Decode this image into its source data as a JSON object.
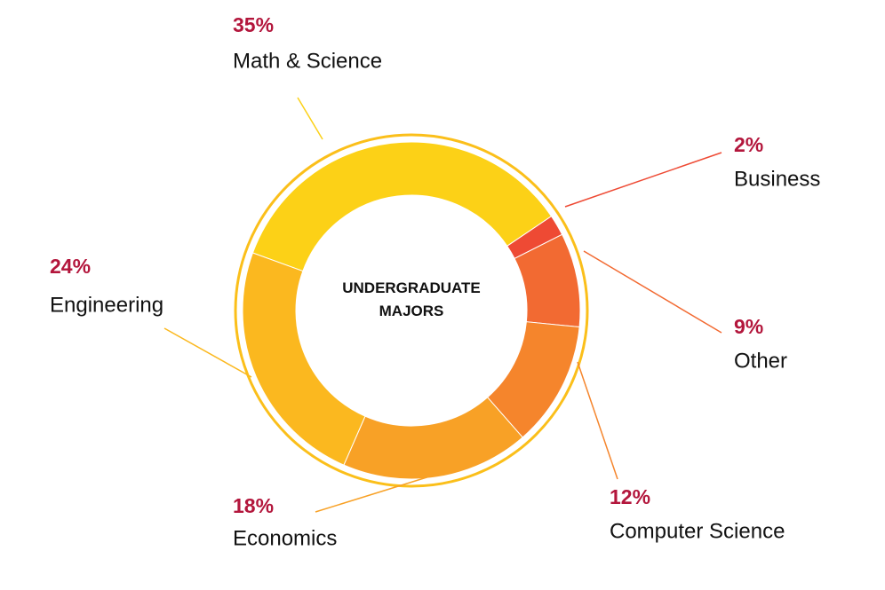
{
  "chart_data": {
    "type": "donut",
    "title": "UNDERGRADUATE MAJORS",
    "categories": [
      "Math & Science",
      "Business",
      "Other",
      "Computer Science",
      "Economics",
      "Engineering"
    ],
    "values": [
      35,
      2,
      9,
      12,
      18,
      24
    ],
    "value_labels": [
      "35%",
      "2%",
      "9%",
      "12%",
      "18%",
      "24%"
    ],
    "colors": [
      "#fcd117",
      "#ee4a34",
      "#f26a32",
      "#f5852c",
      "#f8a126",
      "#fbb81f"
    ]
  }
}
